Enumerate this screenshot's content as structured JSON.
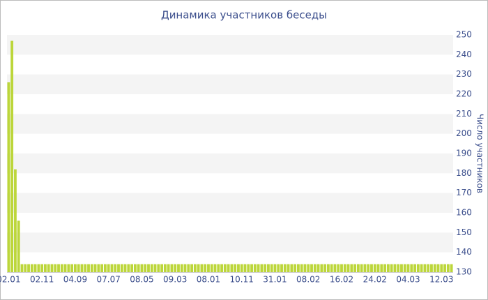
{
  "chart_data": {
    "type": "bar",
    "title": "Динамика участников беседы",
    "y_label": "Число участников",
    "color": "#bcd63a",
    "categories": [
      "02.01",
      null,
      null,
      null,
      null,
      null,
      null,
      null,
      null,
      null,
      "02.11",
      null,
      null,
      null,
      null,
      null,
      null,
      null,
      null,
      null,
      "04.09",
      null,
      null,
      null,
      null,
      null,
      null,
      null,
      null,
      null,
      "07.07",
      null,
      null,
      null,
      null,
      null,
      null,
      null,
      null,
      null,
      "08.05",
      null,
      null,
      null,
      null,
      null,
      null,
      null,
      null,
      null,
      "09.03",
      null,
      null,
      null,
      null,
      null,
      null,
      null,
      null,
      null,
      "08.01",
      null,
      null,
      null,
      null,
      null,
      null,
      null,
      null,
      null,
      "10.11",
      null,
      null,
      null,
      null,
      null,
      null,
      null,
      null,
      null,
      "31.01",
      null,
      null,
      null,
      null,
      null,
      null,
      null,
      null,
      null,
      "08.02",
      null,
      null,
      null,
      null,
      null,
      null,
      null,
      null,
      null,
      "16.02",
      null,
      null,
      null,
      null,
      null,
      null,
      null,
      null,
      null,
      "24.02",
      null,
      null,
      null,
      null,
      null,
      null,
      null,
      null,
      null,
      "04.03",
      null,
      null,
      null,
      null,
      null,
      null,
      null,
      null,
      null,
      "12.03",
      null,
      null,
      null
    ],
    "values": [
      226,
      247,
      182,
      156,
      134,
      134,
      134,
      134,
      134,
      134,
      134,
      134,
      134,
      134,
      134,
      134,
      134,
      134,
      134,
      134,
      134,
      134,
      134,
      134,
      134,
      134,
      134,
      134,
      134,
      134,
      134,
      134,
      134,
      134,
      134,
      134,
      134,
      134,
      134,
      134,
      134,
      134,
      134,
      134,
      134,
      134,
      134,
      134,
      134,
      134,
      134,
      134,
      134,
      134,
      134,
      134,
      134,
      134,
      134,
      134,
      134,
      134,
      134,
      134,
      134,
      134,
      134,
      134,
      134,
      134,
      134,
      134,
      134,
      134,
      134,
      134,
      134,
      134,
      134,
      134,
      134,
      134,
      134,
      134,
      134,
      134,
      134,
      134,
      134,
      134,
      134,
      134,
      134,
      134,
      134,
      134,
      134,
      134,
      134,
      134,
      134,
      134,
      134,
      134,
      134,
      134,
      134,
      134,
      134,
      134,
      134,
      134,
      134,
      134,
      134,
      134,
      134,
      134,
      134,
      134,
      134,
      134,
      134,
      134,
      134,
      134,
      134,
      134,
      134,
      134,
      134,
      134,
      134,
      134
    ],
    "ylim": [
      130,
      250
    ],
    "yticks": [
      130,
      140,
      150,
      160,
      170,
      180,
      190,
      200,
      210,
      220,
      230,
      240,
      250
    ],
    "grid": true
  }
}
